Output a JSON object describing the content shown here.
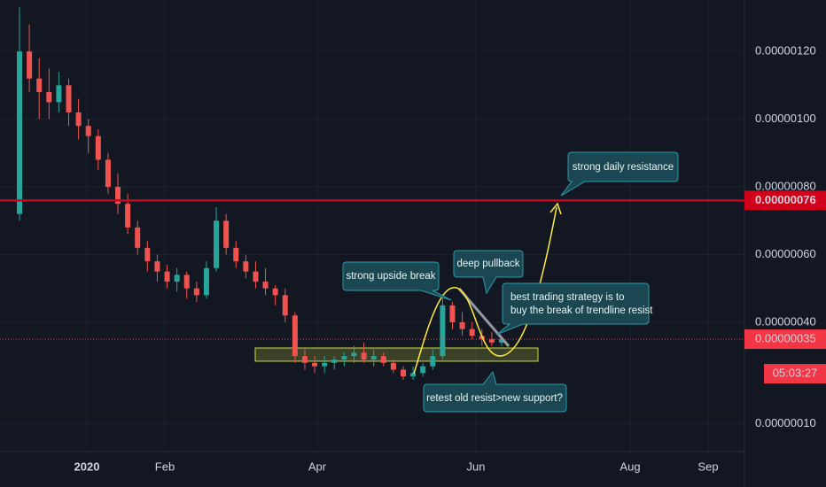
{
  "chart_data": {
    "type": "candlestick",
    "open": [
      7.2e-07,
      1.2e-06,
      1.12e-06,
      1.08e-06,
      1.05e-06,
      1.1e-06,
      1.02e-06,
      9.8e-07,
      9.5e-07,
      8.8e-07,
      8e-07,
      7.5e-07,
      6.8e-07,
      6.2e-07,
      5.8e-07,
      5.5e-07,
      5.2e-07,
      5.4e-07,
      5e-07,
      4.8e-07,
      5.6e-07,
      7e-07,
      6.2e-07,
      5.8e-07,
      5.5e-07,
      5.2e-07,
      5e-07,
      4.8e-07,
      4.2e-07,
      3e-07,
      2.8e-07,
      2.7e-07,
      2.8e-07,
      2.9e-07,
      3e-07,
      3.1e-07,
      2.9e-07,
      3e-07,
      2.8e-07,
      2.6e-07,
      2.4e-07,
      2.5e-07,
      2.7e-07,
      3e-07,
      4.5e-07,
      4e-07,
      3.8e-07,
      3.6e-07,
      3.5e-07,
      3.4e-07
    ],
    "high": [
      1.33e-06,
      1.28e-06,
      1.18e-06,
      1.15e-06,
      1.14e-06,
      1.12e-06,
      1.06e-06,
      1e-06,
      9.7e-07,
      9e-07,
      8.4e-07,
      7.8e-07,
      7e-07,
      6.4e-07,
      6e-07,
      5.7e-07,
      5.6e-07,
      5.5e-07,
      5.2e-07,
      5.8e-07,
      7.4e-07,
      7.2e-07,
      6.4e-07,
      6e-07,
      5.8e-07,
      5.6e-07,
      5.1e-07,
      5e-07,
      4.3e-07,
      3.2e-07,
      3e-07,
      3e-07,
      3e-07,
      3.1e-07,
      3.3e-07,
      3.4e-07,
      3.2e-07,
      3.1e-07,
      2.9e-07,
      2.7e-07,
      2.7e-07,
      2.8e-07,
      3.2e-07,
      4.7e-07,
      4.6e-07,
      4.3e-07,
      4e-07,
      3.8e-07,
      3.7e-07,
      3.6e-07
    ],
    "low": [
      7e-07,
      1.08e-06,
      1e-06,
      1e-06,
      1.02e-06,
      9.8e-07,
      9.4e-07,
      9e-07,
      8.5e-07,
      7.8e-07,
      7.2e-07,
      6.6e-07,
      6e-07,
      5.5e-07,
      5.2e-07,
      5e-07,
      4.9e-07,
      4.7e-07,
      4.6e-07,
      4.7e-07,
      5.5e-07,
      6e-07,
      5.6e-07,
      5.3e-07,
      5e-07,
      4.8e-07,
      4.5e-07,
      4e-07,
      2.8e-07,
      2.6e-07,
      2.5e-07,
      2.5e-07,
      2.6e-07,
      2.7e-07,
      2.8e-07,
      2.8e-07,
      2.7e-07,
      2.7e-07,
      2.5e-07,
      2.3e-07,
      2.3e-07,
      2.4e-07,
      2.6e-07,
      2.9e-07,
      3.8e-07,
      3.6e-07,
      3.5e-07,
      3.3e-07,
      3.3e-07,
      3.3e-07
    ],
    "close": [
      1.2e-06,
      1.12e-06,
      1.08e-06,
      1.05e-06,
      1.1e-06,
      1.02e-06,
      9.8e-07,
      9.5e-07,
      8.8e-07,
      8e-07,
      7.5e-07,
      6.8e-07,
      6.2e-07,
      5.8e-07,
      5.5e-07,
      5.2e-07,
      5.4e-07,
      5e-07,
      4.8e-07,
      5.6e-07,
      7e-07,
      6.2e-07,
      5.8e-07,
      5.5e-07,
      5.2e-07,
      5e-07,
      4.8e-07,
      4.2e-07,
      3e-07,
      2.8e-07,
      2.7e-07,
      2.8e-07,
      2.9e-07,
      3e-07,
      3.1e-07,
      2.9e-07,
      3e-07,
      2.8e-07,
      2.6e-07,
      2.4e-07,
      2.5e-07,
      2.7e-07,
      3e-07,
      4.5e-07,
      4e-07,
      3.8e-07,
      3.6e-07,
      3.5e-07,
      3.4e-07,
      3.5e-07
    ],
    "up_color": "#26a69a",
    "down_color": "#ef5350",
    "ylim": [
      1.8e-08,
      1.352e-06
    ],
    "yticks": [
      {
        "value": 1e-07,
        "label": "0.00000010"
      },
      {
        "value": 4e-07,
        "label": "0.00000040"
      },
      {
        "value": 6e-07,
        "label": "0.00000060"
      },
      {
        "value": 8e-07,
        "label": "0.00000080"
      },
      {
        "value": 1e-06,
        "label": "0.00000100"
      },
      {
        "value": 1.2e-06,
        "label": "0.00000120"
      }
    ],
    "xtick_labels": [
      "2020",
      "Feb",
      "Apr",
      "Jun",
      "Aug",
      "Sep"
    ],
    "resistance": {
      "value": 7.6e-07,
      "label": "0.00000076",
      "color": "#d0021b"
    },
    "last_price": {
      "value": 3.5e-07,
      "label": "0.00000035",
      "color": "#f23645"
    },
    "countdown": "05:03:27",
    "support_zone": [
      2.85e-07,
      3.24e-07
    ],
    "annotations": {
      "resistance_note": "strong daily resistance",
      "break_note": "strong upside break",
      "pullback_note": "deep pullback",
      "strategy_note": [
        "best trading strategy is to",
        "buy the break of trendline resist"
      ],
      "retest_note": "retest old resist>new support?"
    }
  }
}
